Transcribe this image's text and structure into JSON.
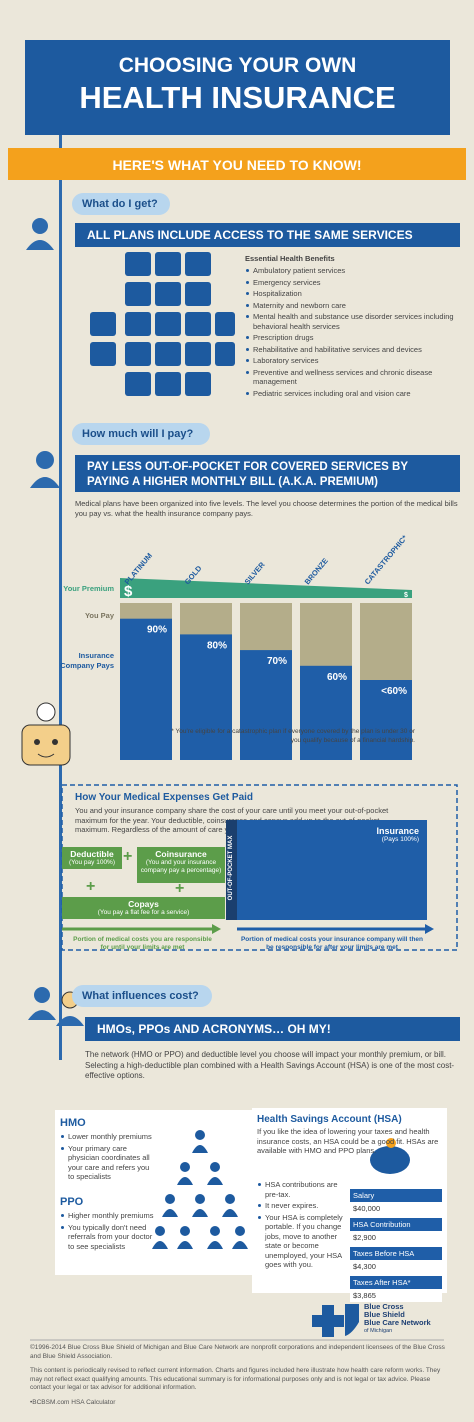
{
  "header": {
    "line1": "CHOOSING YOUR OWN",
    "line2": "HEALTH INSURANCE"
  },
  "banner": "HERE'S WHAT YOU NEED TO KNOW!",
  "section1": {
    "tag": "What do I get?",
    "heading": "ALL PLANS INCLUDE ACCESS TO THE SAME SERVICES",
    "list_title": "Essential Health Benefits",
    "items": [
      "Ambulatory patient services",
      "Emergency services",
      "Hospitalization",
      "Maternity and newborn care",
      "Mental health and substance use disorder services including behavioral health services",
      "Prescription drugs",
      "Rehabilitative and habilitative services and devices",
      "Laboratory services",
      "Preventive and wellness services and chronic disease management",
      "Pediatric services including oral and vision care"
    ]
  },
  "section2": {
    "tag": "How much will I pay?",
    "heading": "PAY LESS OUT-OF-POCKET FOR COVERED SERVICES BY PAYING A HIGHER MONTHLY BILL (A.K.A. PREMIUM)",
    "intro": "Medical plans have been organized into five levels. The level you choose determines the portion of the medical bills you pay vs. what the health insurance company pays.",
    "chart": {
      "categories": [
        "PLATINUM",
        "GOLD",
        "SILVER",
        "BRONZE",
        "CATASTROPHIC*"
      ],
      "premium_label": "Your Premium",
      "premium_symbols": [
        "$",
        "$"
      ],
      "you_pay_label": "You Pay",
      "insurer_label": "Insurance Company Pays",
      "values": [
        90,
        80,
        70,
        60,
        null
      ],
      "value_labels": [
        "90%",
        "80%",
        "70%",
        "60%",
        "<60%"
      ],
      "ylim": [
        0,
        100
      ]
    },
    "footnote": "* You're eligible for a catastrophic plan if everyone covered by the plan is under 30 or you qualify because of a financial hardship."
  },
  "expenses": {
    "title": "How Your Medical Expenses Get Paid",
    "text": "You and your insurance company share the cost of your care until you meet your out-of-pocket maximum for the year. Your deductible, coinsurance and copays add up to the out-of-pocket maximum. Regardless of the amount of care you receive, your monthly premium will need to be paid.",
    "deductible": {
      "title": "Deductible",
      "note": "(You pay 100%)"
    },
    "coinsurance": {
      "title": "Coinsurance",
      "note": "(You and your insurance company pay a percentage)"
    },
    "copays": {
      "title": "Copays",
      "note": "(You pay a flat fee for a service)"
    },
    "oop_max": "OUT-OF-POCKET MAX",
    "insurance": {
      "title": "Insurance",
      "note": "(Pays 100%)"
    },
    "left_caption": "Portion of medical costs you are responsible for until your limits are met",
    "right_caption": "Portion of medical costs your insurance company will then be responsible for after your limits are met"
  },
  "section3": {
    "tag": "What influences cost?",
    "heading": "HMOs, PPOs AND ACRONYMS… OH MY!",
    "intro": "The network (HMO or PPO) and deductible level you choose will impact your monthly premium, or bill. Selecting a high-deductible plan combined with a Health Savings Account (HSA) is one of the most cost-effective options.",
    "hmo": {
      "title": "HMO",
      "items": [
        "Lower monthly premiums",
        "Your primary care physician coordinates all your care and refers you to specialists"
      ]
    },
    "ppo": {
      "title": "PPO",
      "items": [
        "Higher monthly premiums",
        "You typically don't need referrals from your doctor to see specialists"
      ]
    },
    "hsa": {
      "title": "Health Savings Account (HSA)",
      "text": "If you like the idea of lowering your taxes and health insurance costs, an HSA could be a good fit. HSAs are available with HMO and PPO plans.",
      "items": [
        "HSA contributions are pre-tax.",
        "It never expires.",
        "Your HSA is completely portable. If you change jobs, move to another state or become unemployed, your HSA goes with you."
      ],
      "table": [
        [
          "Salary",
          "$40,000"
        ],
        [
          "HSA Contribution",
          "$2,900"
        ],
        [
          "Taxes Before HSA",
          "$4,300"
        ],
        [
          "Taxes After HSA*",
          "$3,865"
        ]
      ]
    }
  },
  "footer": {
    "logo_lines": [
      "Blue Cross",
      "Blue Shield",
      "Blue Care Network",
      "of Michigan"
    ],
    "paragraphs": [
      "©1996-2014 Blue Cross Blue Shield of Michigan and Blue Care Network are nonprofit corporations and independent licensees of the Blue Cross and Blue Shield Association.",
      "This content is periodically revised to reflect current information. Charts and figures included here illustrate how health care reform works. They may not reflect exact qualifying amounts. This educational summary is for informational purposes only and is not legal or tax advice. Please contact your legal or tax advisor for additional information."
    ],
    "link": "•BCBSM.com HSA Calculator"
  }
}
